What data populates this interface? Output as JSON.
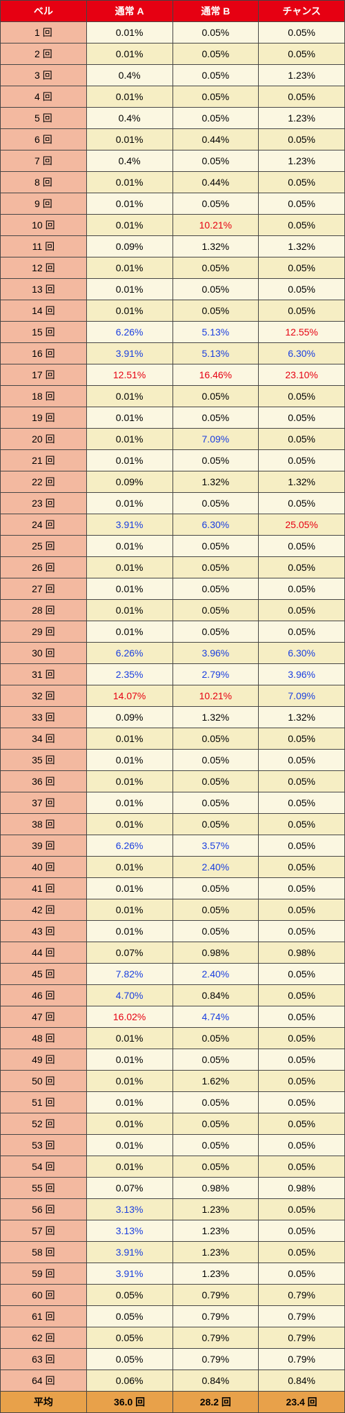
{
  "headers": [
    "ベル",
    "通常 A",
    "通常 B",
    "チャンス"
  ],
  "footer": {
    "label": "平均",
    "values": [
      "36.0 回",
      "28.2 回",
      "23.4 回"
    ]
  },
  "rows": [
    {
      "label": "1 回",
      "cells": [
        {
          "v": "0.01%",
          "c": "black"
        },
        {
          "v": "0.05%",
          "c": "black"
        },
        {
          "v": "0.05%",
          "c": "black"
        }
      ]
    },
    {
      "label": "2 回",
      "cells": [
        {
          "v": "0.01%",
          "c": "black"
        },
        {
          "v": "0.05%",
          "c": "black"
        },
        {
          "v": "0.05%",
          "c": "black"
        }
      ]
    },
    {
      "label": "3 回",
      "cells": [
        {
          "v": "0.4%",
          "c": "black"
        },
        {
          "v": "0.05%",
          "c": "black"
        },
        {
          "v": "1.23%",
          "c": "black"
        }
      ]
    },
    {
      "label": "4 回",
      "cells": [
        {
          "v": "0.01%",
          "c": "black"
        },
        {
          "v": "0.05%",
          "c": "black"
        },
        {
          "v": "0.05%",
          "c": "black"
        }
      ]
    },
    {
      "label": "5 回",
      "cells": [
        {
          "v": "0.4%",
          "c": "black"
        },
        {
          "v": "0.05%",
          "c": "black"
        },
        {
          "v": "1.23%",
          "c": "black"
        }
      ]
    },
    {
      "label": "6 回",
      "cells": [
        {
          "v": "0.01%",
          "c": "black"
        },
        {
          "v": "0.44%",
          "c": "black"
        },
        {
          "v": "0.05%",
          "c": "black"
        }
      ]
    },
    {
      "label": "7 回",
      "cells": [
        {
          "v": "0.4%",
          "c": "black"
        },
        {
          "v": "0.05%",
          "c": "black"
        },
        {
          "v": "1.23%",
          "c": "black"
        }
      ]
    },
    {
      "label": "8 回",
      "cells": [
        {
          "v": "0.01%",
          "c": "black"
        },
        {
          "v": "0.44%",
          "c": "black"
        },
        {
          "v": "0.05%",
          "c": "black"
        }
      ]
    },
    {
      "label": "9 回",
      "cells": [
        {
          "v": "0.01%",
          "c": "black"
        },
        {
          "v": "0.05%",
          "c": "black"
        },
        {
          "v": "0.05%",
          "c": "black"
        }
      ]
    },
    {
      "label": "10 回",
      "cells": [
        {
          "v": "0.01%",
          "c": "black"
        },
        {
          "v": "10.21%",
          "c": "red"
        },
        {
          "v": "0.05%",
          "c": "black"
        }
      ]
    },
    {
      "label": "11 回",
      "cells": [
        {
          "v": "0.09%",
          "c": "black"
        },
        {
          "v": "1.32%",
          "c": "black"
        },
        {
          "v": "1.32%",
          "c": "black"
        }
      ]
    },
    {
      "label": "12 回",
      "cells": [
        {
          "v": "0.01%",
          "c": "black"
        },
        {
          "v": "0.05%",
          "c": "black"
        },
        {
          "v": "0.05%",
          "c": "black"
        }
      ]
    },
    {
      "label": "13 回",
      "cells": [
        {
          "v": "0.01%",
          "c": "black"
        },
        {
          "v": "0.05%",
          "c": "black"
        },
        {
          "v": "0.05%",
          "c": "black"
        }
      ]
    },
    {
      "label": "14 回",
      "cells": [
        {
          "v": "0.01%",
          "c": "black"
        },
        {
          "v": "0.05%",
          "c": "black"
        },
        {
          "v": "0.05%",
          "c": "black"
        }
      ]
    },
    {
      "label": "15 回",
      "cells": [
        {
          "v": "6.26%",
          "c": "blue"
        },
        {
          "v": "5.13%",
          "c": "blue"
        },
        {
          "v": "12.55%",
          "c": "red"
        }
      ]
    },
    {
      "label": "16 回",
      "cells": [
        {
          "v": "3.91%",
          "c": "blue"
        },
        {
          "v": "5.13%",
          "c": "blue"
        },
        {
          "v": "6.30%",
          "c": "blue"
        }
      ]
    },
    {
      "label": "17 回",
      "cells": [
        {
          "v": "12.51%",
          "c": "red"
        },
        {
          "v": "16.46%",
          "c": "red"
        },
        {
          "v": "23.10%",
          "c": "red"
        }
      ]
    },
    {
      "label": "18 回",
      "cells": [
        {
          "v": "0.01%",
          "c": "black"
        },
        {
          "v": "0.05%",
          "c": "black"
        },
        {
          "v": "0.05%",
          "c": "black"
        }
      ]
    },
    {
      "label": "19 回",
      "cells": [
        {
          "v": "0.01%",
          "c": "black"
        },
        {
          "v": "0.05%",
          "c": "black"
        },
        {
          "v": "0.05%",
          "c": "black"
        }
      ]
    },
    {
      "label": "20 回",
      "cells": [
        {
          "v": "0.01%",
          "c": "black"
        },
        {
          "v": "7.09%",
          "c": "blue"
        },
        {
          "v": "0.05%",
          "c": "black"
        }
      ]
    },
    {
      "label": "21 回",
      "cells": [
        {
          "v": "0.01%",
          "c": "black"
        },
        {
          "v": "0.05%",
          "c": "black"
        },
        {
          "v": "0.05%",
          "c": "black"
        }
      ]
    },
    {
      "label": "22 回",
      "cells": [
        {
          "v": "0.09%",
          "c": "black"
        },
        {
          "v": "1.32%",
          "c": "black"
        },
        {
          "v": "1.32%",
          "c": "black"
        }
      ]
    },
    {
      "label": "23 回",
      "cells": [
        {
          "v": "0.01%",
          "c": "black"
        },
        {
          "v": "0.05%",
          "c": "black"
        },
        {
          "v": "0.05%",
          "c": "black"
        }
      ]
    },
    {
      "label": "24 回",
      "cells": [
        {
          "v": "3.91%",
          "c": "blue"
        },
        {
          "v": "6.30%",
          "c": "blue"
        },
        {
          "v": "25.05%",
          "c": "red"
        }
      ]
    },
    {
      "label": "25 回",
      "cells": [
        {
          "v": "0.01%",
          "c": "black"
        },
        {
          "v": "0.05%",
          "c": "black"
        },
        {
          "v": "0.05%",
          "c": "black"
        }
      ]
    },
    {
      "label": "26 回",
      "cells": [
        {
          "v": "0.01%",
          "c": "black"
        },
        {
          "v": "0.05%",
          "c": "black"
        },
        {
          "v": "0.05%",
          "c": "black"
        }
      ]
    },
    {
      "label": "27 回",
      "cells": [
        {
          "v": "0.01%",
          "c": "black"
        },
        {
          "v": "0.05%",
          "c": "black"
        },
        {
          "v": "0.05%",
          "c": "black"
        }
      ]
    },
    {
      "label": "28 回",
      "cells": [
        {
          "v": "0.01%",
          "c": "black"
        },
        {
          "v": "0.05%",
          "c": "black"
        },
        {
          "v": "0.05%",
          "c": "black"
        }
      ]
    },
    {
      "label": "29 回",
      "cells": [
        {
          "v": "0.01%",
          "c": "black"
        },
        {
          "v": "0.05%",
          "c": "black"
        },
        {
          "v": "0.05%",
          "c": "black"
        }
      ]
    },
    {
      "label": "30 回",
      "cells": [
        {
          "v": "6.26%",
          "c": "blue"
        },
        {
          "v": "3.96%",
          "c": "blue"
        },
        {
          "v": "6.30%",
          "c": "blue"
        }
      ]
    },
    {
      "label": "31 回",
      "cells": [
        {
          "v": "2.35%",
          "c": "blue"
        },
        {
          "v": "2.79%",
          "c": "blue"
        },
        {
          "v": "3.96%",
          "c": "blue"
        }
      ]
    },
    {
      "label": "32 回",
      "cells": [
        {
          "v": "14.07%",
          "c": "red"
        },
        {
          "v": "10.21%",
          "c": "red"
        },
        {
          "v": "7.09%",
          "c": "blue"
        }
      ]
    },
    {
      "label": "33 回",
      "cells": [
        {
          "v": "0.09%",
          "c": "black"
        },
        {
          "v": "1.32%",
          "c": "black"
        },
        {
          "v": "1.32%",
          "c": "black"
        }
      ]
    },
    {
      "label": "34 回",
      "cells": [
        {
          "v": "0.01%",
          "c": "black"
        },
        {
          "v": "0.05%",
          "c": "black"
        },
        {
          "v": "0.05%",
          "c": "black"
        }
      ]
    },
    {
      "label": "35 回",
      "cells": [
        {
          "v": "0.01%",
          "c": "black"
        },
        {
          "v": "0.05%",
          "c": "black"
        },
        {
          "v": "0.05%",
          "c": "black"
        }
      ]
    },
    {
      "label": "36 回",
      "cells": [
        {
          "v": "0.01%",
          "c": "black"
        },
        {
          "v": "0.05%",
          "c": "black"
        },
        {
          "v": "0.05%",
          "c": "black"
        }
      ]
    },
    {
      "label": "37 回",
      "cells": [
        {
          "v": "0.01%",
          "c": "black"
        },
        {
          "v": "0.05%",
          "c": "black"
        },
        {
          "v": "0.05%",
          "c": "black"
        }
      ]
    },
    {
      "label": "38 回",
      "cells": [
        {
          "v": "0.01%",
          "c": "black"
        },
        {
          "v": "0.05%",
          "c": "black"
        },
        {
          "v": "0.05%",
          "c": "black"
        }
      ]
    },
    {
      "label": "39 回",
      "cells": [
        {
          "v": "6.26%",
          "c": "blue"
        },
        {
          "v": "3.57%",
          "c": "blue"
        },
        {
          "v": "0.05%",
          "c": "black"
        }
      ]
    },
    {
      "label": "40 回",
      "cells": [
        {
          "v": "0.01%",
          "c": "black"
        },
        {
          "v": "2.40%",
          "c": "blue"
        },
        {
          "v": "0.05%",
          "c": "black"
        }
      ]
    },
    {
      "label": "41 回",
      "cells": [
        {
          "v": "0.01%",
          "c": "black"
        },
        {
          "v": "0.05%",
          "c": "black"
        },
        {
          "v": "0.05%",
          "c": "black"
        }
      ]
    },
    {
      "label": "42 回",
      "cells": [
        {
          "v": "0.01%",
          "c": "black"
        },
        {
          "v": "0.05%",
          "c": "black"
        },
        {
          "v": "0.05%",
          "c": "black"
        }
      ]
    },
    {
      "label": "43 回",
      "cells": [
        {
          "v": "0.01%",
          "c": "black"
        },
        {
          "v": "0.05%",
          "c": "black"
        },
        {
          "v": "0.05%",
          "c": "black"
        }
      ]
    },
    {
      "label": "44 回",
      "cells": [
        {
          "v": "0.07%",
          "c": "black"
        },
        {
          "v": "0.98%",
          "c": "black"
        },
        {
          "v": "0.98%",
          "c": "black"
        }
      ]
    },
    {
      "label": "45 回",
      "cells": [
        {
          "v": "7.82%",
          "c": "blue"
        },
        {
          "v": "2.40%",
          "c": "blue"
        },
        {
          "v": "0.05%",
          "c": "black"
        }
      ]
    },
    {
      "label": "46 回",
      "cells": [
        {
          "v": "4.70%",
          "c": "blue"
        },
        {
          "v": "0.84%",
          "c": "black"
        },
        {
          "v": "0.05%",
          "c": "black"
        }
      ]
    },
    {
      "label": "47 回",
      "cells": [
        {
          "v": "16.02%",
          "c": "red"
        },
        {
          "v": "4.74%",
          "c": "blue"
        },
        {
          "v": "0.05%",
          "c": "black"
        }
      ]
    },
    {
      "label": "48 回",
      "cells": [
        {
          "v": "0.01%",
          "c": "black"
        },
        {
          "v": "0.05%",
          "c": "black"
        },
        {
          "v": "0.05%",
          "c": "black"
        }
      ]
    },
    {
      "label": "49 回",
      "cells": [
        {
          "v": "0.01%",
          "c": "black"
        },
        {
          "v": "0.05%",
          "c": "black"
        },
        {
          "v": "0.05%",
          "c": "black"
        }
      ]
    },
    {
      "label": "50 回",
      "cells": [
        {
          "v": "0.01%",
          "c": "black"
        },
        {
          "v": "1.62%",
          "c": "black"
        },
        {
          "v": "0.05%",
          "c": "black"
        }
      ]
    },
    {
      "label": "51 回",
      "cells": [
        {
          "v": "0.01%",
          "c": "black"
        },
        {
          "v": "0.05%",
          "c": "black"
        },
        {
          "v": "0.05%",
          "c": "black"
        }
      ]
    },
    {
      "label": "52 回",
      "cells": [
        {
          "v": "0.01%",
          "c": "black"
        },
        {
          "v": "0.05%",
          "c": "black"
        },
        {
          "v": "0.05%",
          "c": "black"
        }
      ]
    },
    {
      "label": "53 回",
      "cells": [
        {
          "v": "0.01%",
          "c": "black"
        },
        {
          "v": "0.05%",
          "c": "black"
        },
        {
          "v": "0.05%",
          "c": "black"
        }
      ]
    },
    {
      "label": "54 回",
      "cells": [
        {
          "v": "0.01%",
          "c": "black"
        },
        {
          "v": "0.05%",
          "c": "black"
        },
        {
          "v": "0.05%",
          "c": "black"
        }
      ]
    },
    {
      "label": "55 回",
      "cells": [
        {
          "v": "0.07%",
          "c": "black"
        },
        {
          "v": "0.98%",
          "c": "black"
        },
        {
          "v": "0.98%",
          "c": "black"
        }
      ]
    },
    {
      "label": "56 回",
      "cells": [
        {
          "v": "3.13%",
          "c": "blue"
        },
        {
          "v": "1.23%",
          "c": "black"
        },
        {
          "v": "0.05%",
          "c": "black"
        }
      ]
    },
    {
      "label": "57 回",
      "cells": [
        {
          "v": "3.13%",
          "c": "blue"
        },
        {
          "v": "1.23%",
          "c": "black"
        },
        {
          "v": "0.05%",
          "c": "black"
        }
      ]
    },
    {
      "label": "58 回",
      "cells": [
        {
          "v": "3.91%",
          "c": "blue"
        },
        {
          "v": "1.23%",
          "c": "black"
        },
        {
          "v": "0.05%",
          "c": "black"
        }
      ]
    },
    {
      "label": "59 回",
      "cells": [
        {
          "v": "3.91%",
          "c": "blue"
        },
        {
          "v": "1.23%",
          "c": "black"
        },
        {
          "v": "0.05%",
          "c": "black"
        }
      ]
    },
    {
      "label": "60 回",
      "cells": [
        {
          "v": "0.05%",
          "c": "black"
        },
        {
          "v": "0.79%",
          "c": "black"
        },
        {
          "v": "0.79%",
          "c": "black"
        }
      ]
    },
    {
      "label": "61 回",
      "cells": [
        {
          "v": "0.05%",
          "c": "black"
        },
        {
          "v": "0.79%",
          "c": "black"
        },
        {
          "v": "0.79%",
          "c": "black"
        }
      ]
    },
    {
      "label": "62 回",
      "cells": [
        {
          "v": "0.05%",
          "c": "black"
        },
        {
          "v": "0.79%",
          "c": "black"
        },
        {
          "v": "0.79%",
          "c": "black"
        }
      ]
    },
    {
      "label": "63 回",
      "cells": [
        {
          "v": "0.05%",
          "c": "black"
        },
        {
          "v": "0.79%",
          "c": "black"
        },
        {
          "v": "0.79%",
          "c": "black"
        }
      ]
    },
    {
      "label": "64 回",
      "cells": [
        {
          "v": "0.06%",
          "c": "black"
        },
        {
          "v": "0.84%",
          "c": "black"
        },
        {
          "v": "0.84%",
          "c": "black"
        }
      ]
    }
  ]
}
